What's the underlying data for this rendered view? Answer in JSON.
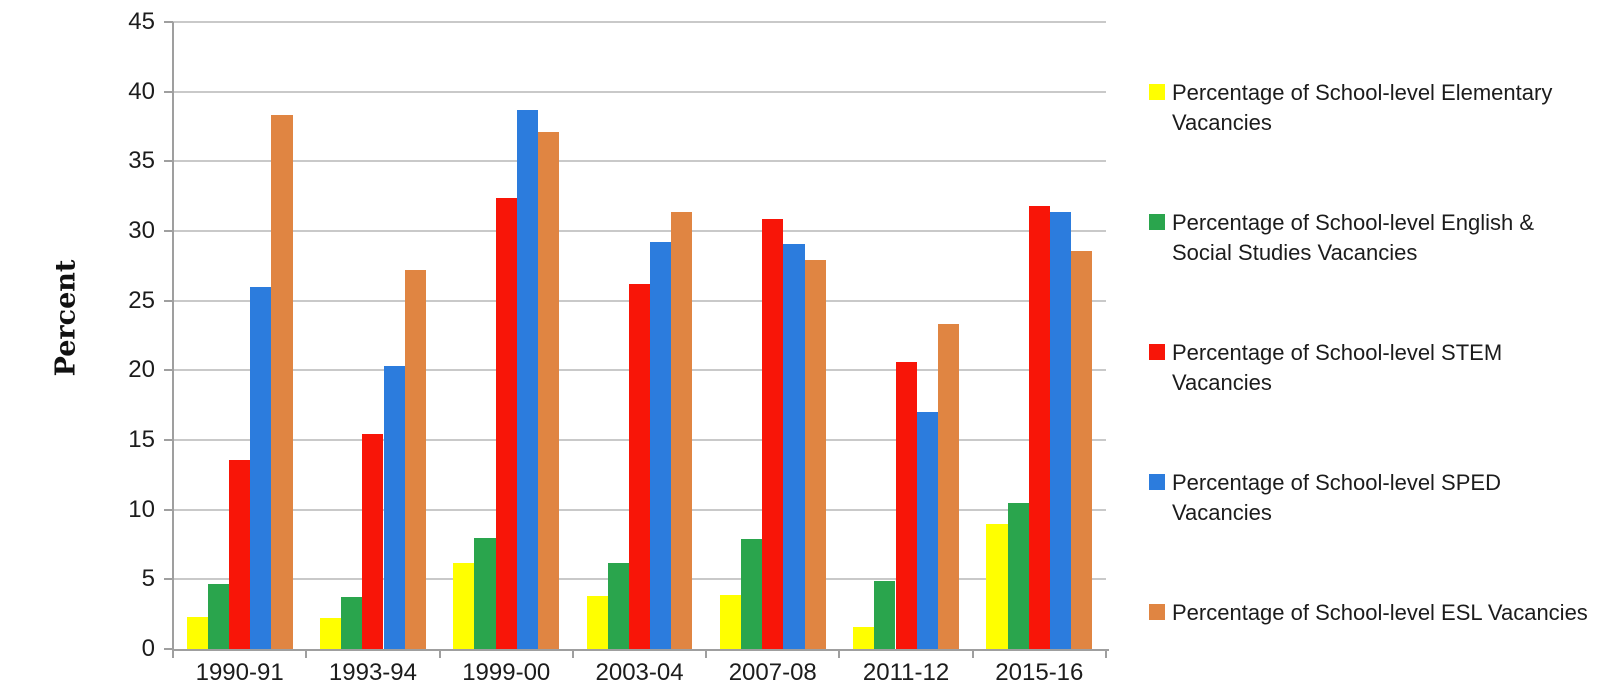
{
  "chart_data": {
    "type": "bar",
    "title": "",
    "ylabel": "Percent",
    "xlabel": "",
    "ylim": [
      0,
      45
    ],
    "yticks": [
      0,
      5,
      10,
      15,
      20,
      25,
      30,
      35,
      40,
      45
    ],
    "grid": true,
    "legend_position": "right",
    "grid_color": "#c9c9c9",
    "axis_color": "#9f9f9f",
    "text_color": "#1c1c1c",
    "categories": [
      "1990-91",
      "1993-94",
      "1999-00",
      "2003-04",
      "2007-08",
      "2011-12",
      "2015-16"
    ],
    "series": [
      {
        "name": "Percentage of School-level Elementary Vacancies",
        "color": "#ffff00",
        "values": [
          2.3,
          2.2,
          6.2,
          3.8,
          3.9,
          1.6,
          9.0
        ]
      },
      {
        "name": "Percentage of School-level English & Social Studies Vacancies",
        "color": "#2aa54d",
        "values": [
          4.7,
          3.7,
          8.0,
          6.2,
          7.9,
          4.9,
          10.5
        ]
      },
      {
        "name": "Percentage of School-level STEM Vacancies",
        "color": "#f81508",
        "values": [
          13.6,
          15.4,
          32.4,
          26.2,
          30.9,
          20.6,
          31.8
        ]
      },
      {
        "name": "Percentage of School-level SPED Vacancies",
        "color": "#2c7cdd",
        "values": [
          26.0,
          20.3,
          38.7,
          29.2,
          29.1,
          17.0,
          31.4
        ]
      },
      {
        "name": "Percentage of School-level ESL Vacancies",
        "color": "#e08542",
        "values": [
          38.3,
          27.2,
          37.1,
          31.4,
          27.9,
          23.3,
          28.6
        ]
      }
    ]
  }
}
